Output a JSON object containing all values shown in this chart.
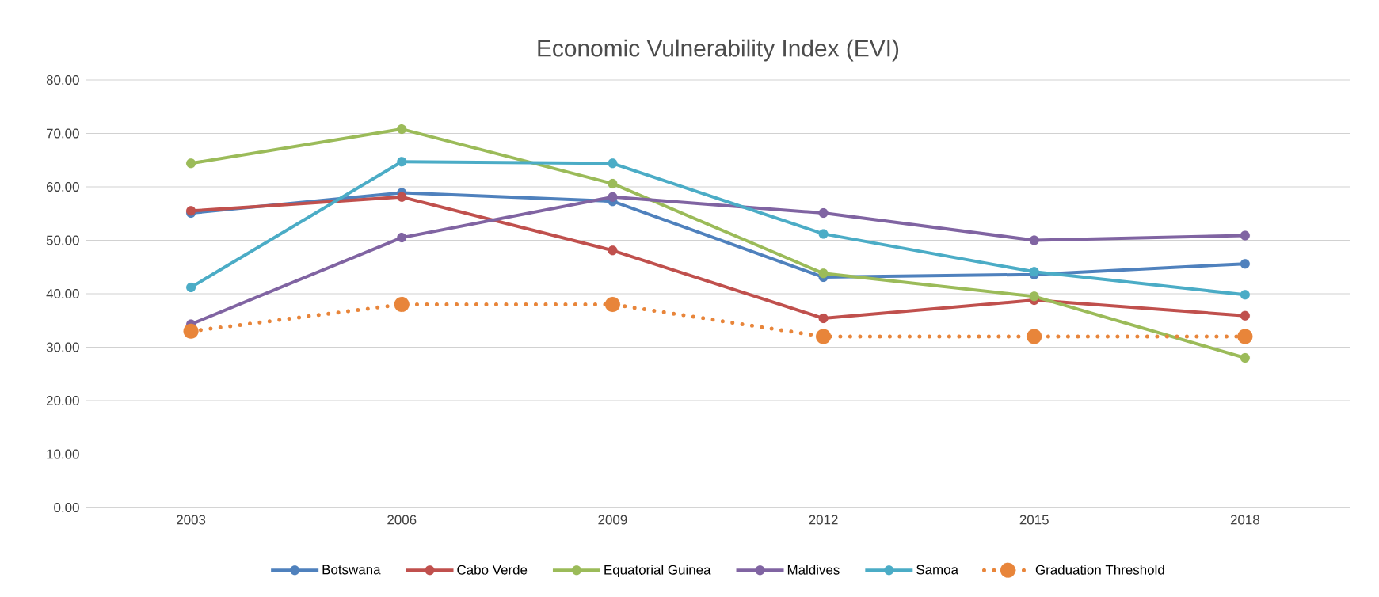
{
  "chart_data": {
    "type": "line",
    "title": "Economic Vulnerability Index (EVI)",
    "categories": [
      "2003",
      "2006",
      "2009",
      "2012",
      "2015",
      "2018"
    ],
    "series": [
      {
        "name": "Botswana",
        "color": "#4f81bd",
        "values": [
          55.1,
          58.9,
          57.3,
          43.1,
          43.6,
          45.6
        ]
      },
      {
        "name": "Cabo Verde",
        "color": "#c0504d",
        "values": [
          55.5,
          58.1,
          48.1,
          35.4,
          38.8,
          35.9
        ]
      },
      {
        "name": "Equatorial Guinea",
        "color": "#9bbb59",
        "values": [
          64.4,
          70.8,
          60.6,
          43.8,
          39.5,
          28.0
        ]
      },
      {
        "name": "Maldives",
        "color": "#8064a2",
        "values": [
          34.3,
          50.5,
          58.1,
          55.1,
          50.0,
          50.9
        ]
      },
      {
        "name": "Samoa",
        "color": "#4bacc6",
        "values": [
          41.2,
          64.7,
          64.4,
          51.2,
          44.1,
          39.8
        ]
      },
      {
        "name": "Graduation Threshold",
        "color": "#e8853a",
        "line_style": "dotted",
        "values": [
          33,
          38,
          38,
          32,
          32,
          32
        ]
      }
    ],
    "ylim": [
      0,
      80
    ],
    "yticks": [
      {
        "value": 0,
        "label": "0.00"
      },
      {
        "value": 10,
        "label": "10.00"
      },
      {
        "value": 20,
        "label": "20.00"
      },
      {
        "value": 30,
        "label": "30.00"
      },
      {
        "value": 40,
        "label": "40.00"
      },
      {
        "value": 50,
        "label": "50.00"
      },
      {
        "value": 60,
        "label": "60.00"
      },
      {
        "value": 70,
        "label": "70.00"
      },
      {
        "value": 80,
        "label": "80.00"
      }
    ],
    "grid": "y",
    "legend": "bottom",
    "marker": "circle",
    "line_style": "solid"
  }
}
